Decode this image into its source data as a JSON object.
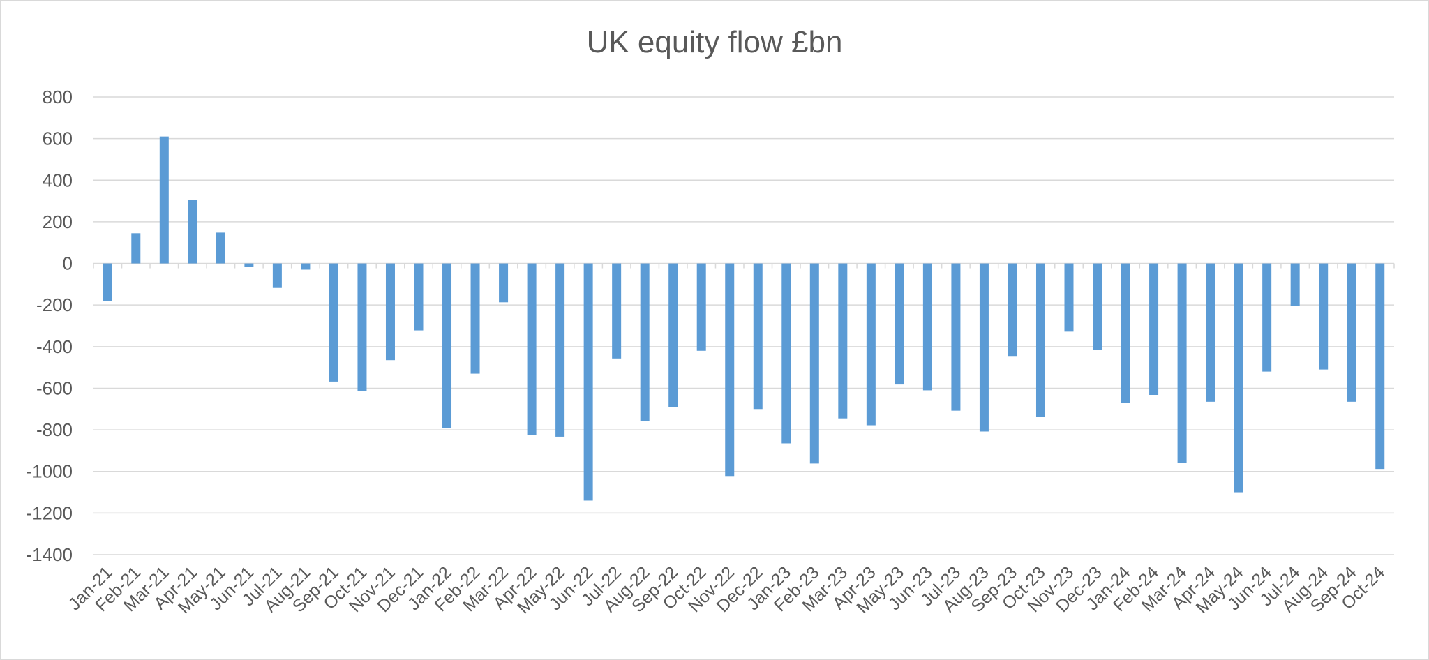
{
  "chart_data": {
    "type": "bar",
    "title": "UK equity flow £bn",
    "xlabel": "",
    "ylabel": "",
    "ylim": [
      -1400,
      800
    ],
    "yticks": [
      800,
      600,
      400,
      200,
      0,
      -200,
      -400,
      -600,
      -800,
      -1000,
      -1200,
      -1400
    ],
    "grid": true,
    "legend": "none",
    "bar_color": "#5b9bd5",
    "categories": [
      "Jan-21",
      "Feb-21",
      "Mar-21",
      "Apr-21",
      "May-21",
      "Jun-21",
      "Jul-21",
      "Aug-21",
      "Sep-21",
      "Oct-21",
      "Nov-21",
      "Dec-21",
      "Jan-22",
      "Feb-22",
      "Mar-22",
      "Apr-22",
      "May-22",
      "Jun-22",
      "Jul-22",
      "Aug-22",
      "Sep-22",
      "Oct-22",
      "Nov-22",
      "Dec-22",
      "Jan-23",
      "Feb-23",
      "Mar-23",
      "Apr-23",
      "May-23",
      "Jun-23",
      "Jul-23",
      "Aug-23",
      "Sep-23",
      "Oct-23",
      "Nov-23",
      "Dec-23",
      "Jan-24",
      "Feb-24",
      "Mar-24",
      "Apr-24",
      "May-24",
      "Jun-24",
      "Jul-24",
      "Aug-24",
      "Sep-24",
      "Oct-24"
    ],
    "values": [
      -180,
      145,
      610,
      305,
      148,
      -15,
      -118,
      -30,
      -568,
      -615,
      -465,
      -322,
      -793,
      -530,
      -187,
      -825,
      -833,
      -1140,
      -457,
      -757,
      -690,
      -420,
      -1022,
      -700,
      -865,
      -962,
      -745,
      -778,
      -582,
      -610,
      -708,
      -808,
      -445,
      -737,
      -328,
      -415,
      -672,
      -632,
      -960,
      -665,
      -1100,
      -520,
      -205,
      -510,
      -665,
      -988
    ]
  }
}
